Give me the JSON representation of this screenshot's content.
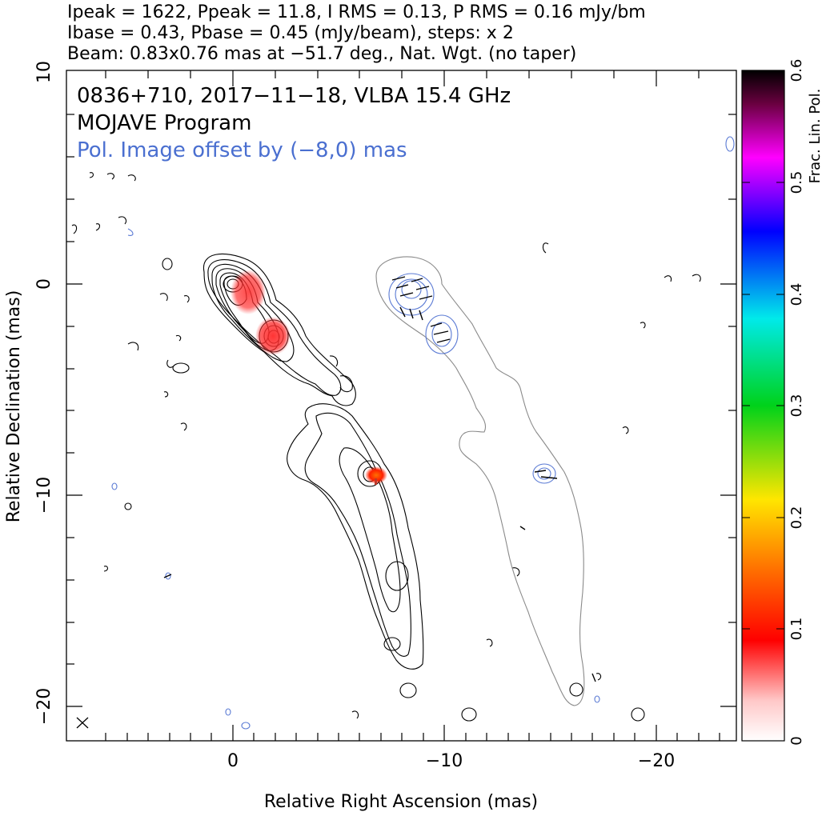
{
  "header": {
    "line1": "Ipeak = 1622, Ppeak = 11.8, I RMS = 0.13, P RMS = 0.16 mJy/bm",
    "line2": "Ibase = 0.43, Pbase = 0.45 (mJy/beam), steps: x 2",
    "line3": "Beam: 0.83x0.76 mas at −51.7 deg., Nat. Wgt. (no taper)"
  },
  "plot": {
    "source_line": "0836+710, 2017−11−18, VLBA 15.4 GHz",
    "program_line": "MOJAVE Program",
    "offset_line": "Pol. Image offset by (−8,0) mas",
    "offset_color": "#4a6fd0",
    "xlabel": "Relative Right Ascension (mas)",
    "ylabel": "Relative Declination (mas)",
    "x_ticks": [
      "0",
      "−10",
      "−20"
    ],
    "y_ticks": [
      "10",
      "0",
      "−10",
      "−20"
    ],
    "beam_marker": "beam-cross-icon"
  },
  "colorbar": {
    "label": "Frac. Lin. Pol.",
    "ticks": [
      "0",
      "0.1",
      "0.2",
      "0.3",
      "0.4",
      "0.5",
      "0.6"
    ],
    "range": [
      0,
      0.6
    ]
  }
}
